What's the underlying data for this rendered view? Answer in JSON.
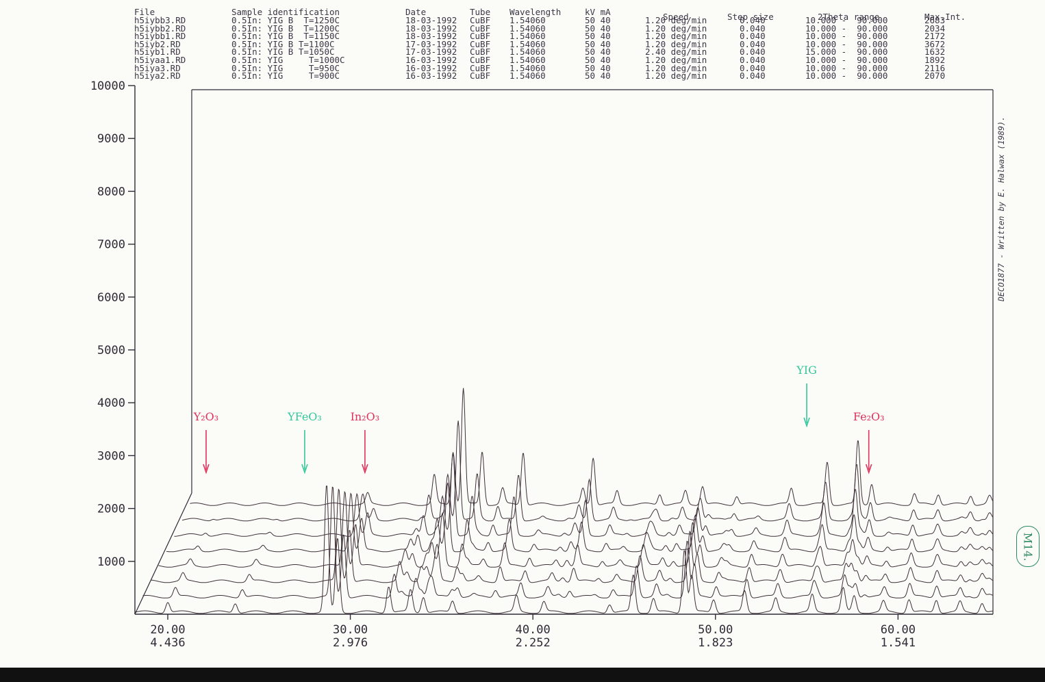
{
  "header": {
    "columns": [
      "File",
      "Sample identification",
      "Date",
      "Tube",
      "Wavelength",
      "kV mA",
      "Speed",
      "Step size",
      "2Theta range",
      "Max.Int."
    ],
    "rows": [
      [
        "h5iybb3.RD",
        "0.5In: YIG B  T=1250C",
        "18-03-1992",
        "CuBF",
        "1.54060",
        "50 40",
        "1.20 deg/min",
        "0.040",
        "10.000 -  90.000",
        "2683"
      ],
      [
        "h5iybb2.RD",
        "0.5In: YIG B  T=1200C",
        "18-03-1992",
        "CuBF",
        "1.54060",
        "50 40",
        "1.20 deg/min",
        "0.040",
        "10.000 -  90.000",
        "2034"
      ],
      [
        "h5iybb1.RD",
        "0.5In: YIG B  T=1150C",
        "18-03-1992",
        "CuBF",
        "1.54060",
        "50 40",
        "1.20 deg/min",
        "0.040",
        "10.000 -  90.000",
        "2172"
      ],
      [
        "h5iyb2.RD",
        "0.5In: YIG B T=1100C",
        "17-03-1992",
        "CuBF",
        "1.54060",
        "50 40",
        "1.20 deg/min",
        "0.040",
        "10.000 -  90.000",
        "3672"
      ],
      [
        "h5iyb1.RD",
        "0.5In: YIG B T=1050C",
        "17-03-1992",
        "CuBF",
        "1.54060",
        "50 40",
        "2.40 deg/min",
        "0.040",
        "15.000 -  90.000",
        "1632"
      ],
      [
        "h5iyaa1.RD",
        "0.5In: YIG     T=1000C",
        "16-03-1992",
        "CuBF",
        "1.54060",
        "50 40",
        "1.20 deg/min",
        "0.040",
        "10.000 -  90.000",
        "1892"
      ],
      [
        "h5iya3.RD",
        "0.5In: YIG     T=950C",
        "16-03-1992",
        "CuBF",
        "1.54060",
        "50 40",
        "1.20 deg/min",
        "0.040",
        "10.000 -  90.000",
        "2116"
      ],
      [
        "h5iya2.RD",
        "0.5In: YIG     T=900C",
        "16-03-1992",
        "CuBF",
        "1.54060",
        "50 40",
        "1.20 deg/min",
        "0.040",
        "10.000 -  90.000",
        "2070"
      ]
    ]
  },
  "credit": "DECO1877 - Written by E. Halwax (1989).",
  "stamp": "M14.",
  "colors": {
    "trace": "#3d2f38",
    "axis": "#2f2a35",
    "oxide_marker": "#e0325a",
    "phase_marker": "#34c79b",
    "paper": "#fbfbf8"
  },
  "chart_data": {
    "type": "line",
    "style": "stacked 3D waterfall of powder diffractograms (Cu K-alpha)",
    "xlabel": "",
    "ylabel": "",
    "xlim": [
      18.2,
      65.2
    ],
    "ylim": [
      0,
      10000
    ],
    "y_ticks": [
      1000,
      2000,
      3000,
      4000,
      5000,
      6000,
      7000,
      8000,
      9000,
      10000
    ],
    "x_ticks": [
      {
        "two_theta": "20.00",
        "d": "4.436",
        "x": 20
      },
      {
        "two_theta": "30.00",
        "d": "2.976",
        "x": 30
      },
      {
        "two_theta": "40.00",
        "d": "2.252",
        "x": 40
      },
      {
        "two_theta": "50.00",
        "d": "1.823",
        "x": 50
      },
      {
        "two_theta": "60.00",
        "d": "1.541",
        "x": 60
      }
    ],
    "series_order_front_to_back": [
      "h5iya2.RD",
      "h5iya3.RD",
      "h5iyaa1.RD",
      "h5iyb1.RD",
      "h5iyb2.RD",
      "h5iybb1.RD",
      "h5iybb2.RD",
      "h5iybb3.RD"
    ],
    "peaks_front": [
      {
        "x": 20.0,
        "h": 200
      },
      {
        "x": 23.7,
        "h": 180
      },
      {
        "x": 28.7,
        "h": 2400
      },
      {
        "x": 29.3,
        "h": 1400
      },
      {
        "x": 32.1,
        "h": 500
      },
      {
        "x": 33.3,
        "h": 420
      },
      {
        "x": 34.0,
        "h": 300
      },
      {
        "x": 35.6,
        "h": 220
      },
      {
        "x": 39.1,
        "h": 300
      },
      {
        "x": 40.6,
        "h": 200
      },
      {
        "x": 44.2,
        "h": 160
      },
      {
        "x": 45.5,
        "h": 700
      },
      {
        "x": 46.6,
        "h": 260
      },
      {
        "x": 48.3,
        "h": 1200
      },
      {
        "x": 48.7,
        "h": 700
      },
      {
        "x": 49.9,
        "h": 250
      },
      {
        "x": 51.6,
        "h": 400
      },
      {
        "x": 53.3,
        "h": 250
      },
      {
        "x": 55.3,
        "h": 320
      },
      {
        "x": 57.0,
        "h": 450
      },
      {
        "x": 57.6,
        "h": 300
      },
      {
        "x": 59.2,
        "h": 200
      },
      {
        "x": 60.6,
        "h": 250
      },
      {
        "x": 62.1,
        "h": 240
      },
      {
        "x": 63.4,
        "h": 190
      },
      {
        "x": 64.6,
        "h": 180
      }
    ],
    "peaks_back": [
      {
        "x": 28.6,
        "h": 200
      },
      {
        "x": 32.5,
        "h": 550
      },
      {
        "x": 33.6,
        "h": 1000
      },
      {
        "x": 34.2,
        "h": 2200
      },
      {
        "x": 35.3,
        "h": 1000
      },
      {
        "x": 36.5,
        "h": 300
      },
      {
        "x": 37.7,
        "h": 1000
      },
      {
        "x": 41.2,
        "h": 300
      },
      {
        "x": 41.8,
        "h": 900
      },
      {
        "x": 43.2,
        "h": 250
      },
      {
        "x": 45.7,
        "h": 200
      },
      {
        "x": 47.2,
        "h": 250
      },
      {
        "x": 48.2,
        "h": 350
      },
      {
        "x": 50.2,
        "h": 160
      },
      {
        "x": 53.4,
        "h": 300
      },
      {
        "x": 55.5,
        "h": 800
      },
      {
        "x": 57.3,
        "h": 1200
      },
      {
        "x": 58.1,
        "h": 400
      },
      {
        "x": 60.6,
        "h": 200
      },
      {
        "x": 62.0,
        "h": 200
      },
      {
        "x": 63.9,
        "h": 170
      },
      {
        "x": 65.0,
        "h": 150
      }
    ],
    "annotations": [
      {
        "label": "Y₂O₃",
        "x": 22.1,
        "color": "oxide_marker"
      },
      {
        "label": "YFeO₃",
        "x": 27.5,
        "color": "phase_marker"
      },
      {
        "label": "In₂O₃",
        "x": 30.8,
        "color": "oxide_marker"
      },
      {
        "label": "YIG",
        "x": 55.0,
        "color": "phase_marker"
      },
      {
        "label": "Fe₂O₃",
        "x": 58.4,
        "color": "oxide_marker"
      }
    ]
  }
}
